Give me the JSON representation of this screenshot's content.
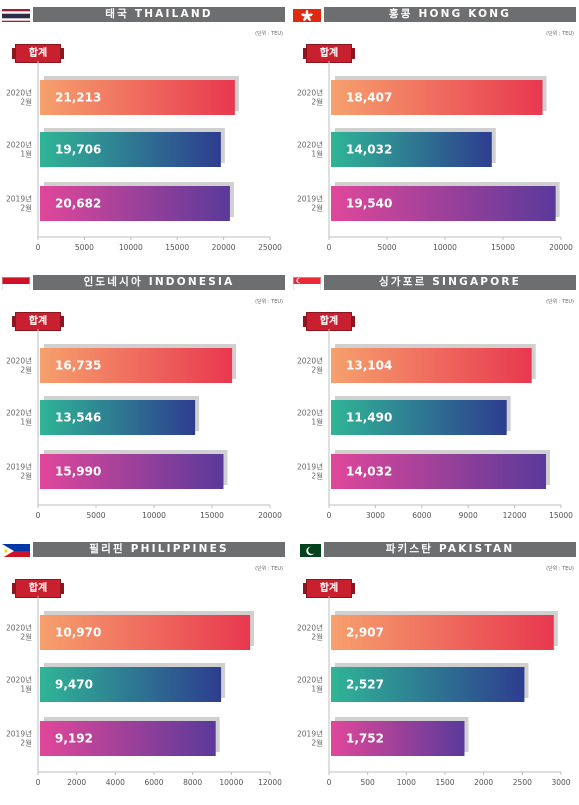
{
  "badge_label": "합계",
  "unit_label": "(단위 : TEU)",
  "charts": [
    {
      "id": "thailand",
      "title": "태국 THAILAND",
      "flag": "thailand-flag",
      "chart_data": {
        "type": "bar",
        "orientation": "horizontal",
        "categories": [
          "2020년\n2월",
          "2020년\n1월",
          "2019년\n2월"
        ],
        "values": [
          21213,
          19706,
          20682
        ],
        "value_labels": [
          "21,213",
          "19,706",
          "20,682"
        ],
        "xlim": [
          0,
          25000
        ],
        "xticks": [
          0,
          5000,
          10000,
          15000,
          20000,
          25000
        ],
        "grid": false,
        "title": "태국 THAILAND"
      }
    },
    {
      "id": "hongkong",
      "title": "홍콩 HONG KONG",
      "flag": "hongkong-flag",
      "chart_data": {
        "type": "bar",
        "orientation": "horizontal",
        "categories": [
          "2020년\n2월",
          "2020년\n1월",
          "2019년\n2월"
        ],
        "values": [
          18407,
          14032,
          19540
        ],
        "value_labels": [
          "18,407",
          "14,032",
          "19,540"
        ],
        "xlim": [
          0,
          20000
        ],
        "xticks": [
          0,
          5000,
          10000,
          15000,
          20000
        ],
        "grid": false,
        "title": "홍콩 HONG KONG"
      }
    },
    {
      "id": "indonesia",
      "title": "인도네시아 INDONESIA",
      "flag": "indonesia-flag",
      "chart_data": {
        "type": "bar",
        "orientation": "horizontal",
        "categories": [
          "2020년\n2월",
          "2020년\n1월",
          "2019년\n2월"
        ],
        "values": [
          16735,
          13546,
          15990
        ],
        "value_labels": [
          "16,735",
          "13,546",
          "15,990"
        ],
        "xlim": [
          0,
          20000
        ],
        "xticks": [
          0,
          5000,
          10000,
          15000,
          20000
        ],
        "grid": false,
        "title": "인도네시아 INDONESIA"
      }
    },
    {
      "id": "singapore",
      "title": "싱가포르 SINGAPORE",
      "flag": "singapore-flag",
      "chart_data": {
        "type": "bar",
        "orientation": "horizontal",
        "categories": [
          "2020년\n2월",
          "2020년\n1월",
          "2019년\n2월"
        ],
        "values": [
          13104,
          11490,
          14032
        ],
        "value_labels": [
          "13,104",
          "11,490",
          "14,032"
        ],
        "xlim": [
          0,
          15000
        ],
        "xticks": [
          0,
          3000,
          6000,
          9000,
          12000,
          15000
        ],
        "grid": false,
        "title": "싱가포르 SINGAPORE"
      }
    },
    {
      "id": "philippines",
      "title": "필리핀 PHILIPPINES",
      "flag": "philippines-flag",
      "chart_data": {
        "type": "bar",
        "orientation": "horizontal",
        "categories": [
          "2020년\n2월",
          "2020년\n1월",
          "2019년\n2월"
        ],
        "values": [
          10970,
          9470,
          9192
        ],
        "value_labels": [
          "10,970",
          "9,470",
          "9,192"
        ],
        "xlim": [
          0,
          12000
        ],
        "xticks": [
          0,
          2000,
          4000,
          6000,
          8000,
          10000,
          12000
        ],
        "grid": false,
        "title": "필리핀 PHILIPPINES"
      }
    },
    {
      "id": "pakistan",
      "title": "파키스탄 PAKISTAN",
      "flag": "pakistan-flag",
      "chart_data": {
        "type": "bar",
        "orientation": "horizontal",
        "categories": [
          "2020년\n2월",
          "2020년\n1월",
          "2019년\n2월"
        ],
        "values": [
          2907,
          2527,
          1752
        ],
        "value_labels": [
          "2,907",
          "2,527",
          "1,752"
        ],
        "xlim": [
          0,
          3000
        ],
        "xticks": [
          0,
          500,
          1000,
          1500,
          2000,
          2500,
          3000
        ],
        "grid": false,
        "title": "파키스탄 PAKISTAN"
      }
    }
  ],
  "colors": {
    "header_bg": "#6d6e70",
    "badge_bg": "#c8202f",
    "bar1_start": "#f6a06d",
    "bar1_end": "#e8384f",
    "bar2_start": "#2fb596",
    "bar2_end": "#2e3d8f",
    "bar3_start": "#e0479a",
    "bar3_end": "#5a3a9a",
    "bar_shadow": "#d0d0d0"
  }
}
